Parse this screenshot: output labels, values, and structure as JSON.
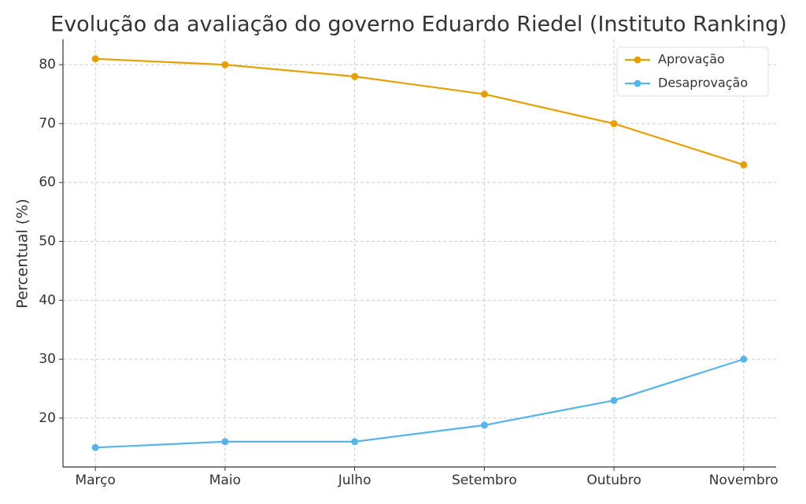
{
  "chart_data": {
    "type": "line",
    "title": "Evolução da avaliação do governo Eduardo Riedel (Instituto Ranking)",
    "y_label": "Percentual (%)",
    "categories": [
      "Março",
      "Maio",
      "Julho",
      "Setembro",
      "Outubro",
      "Novembro"
    ],
    "series": [
      {
        "name": "Aprovação",
        "color": "#e69f00",
        "values": [
          81,
          80,
          78,
          75,
          70,
          63
        ]
      },
      {
        "name": "Desaprovação",
        "color": "#56b4e9",
        "values": [
          15,
          16,
          16,
          18.8,
          23,
          30
        ]
      }
    ],
    "ylim": [
      11.7,
      84.3
    ],
    "yticks": [
      20,
      30,
      40,
      50,
      60,
      70,
      80
    ],
    "grid": true,
    "legend": "upper right"
  }
}
